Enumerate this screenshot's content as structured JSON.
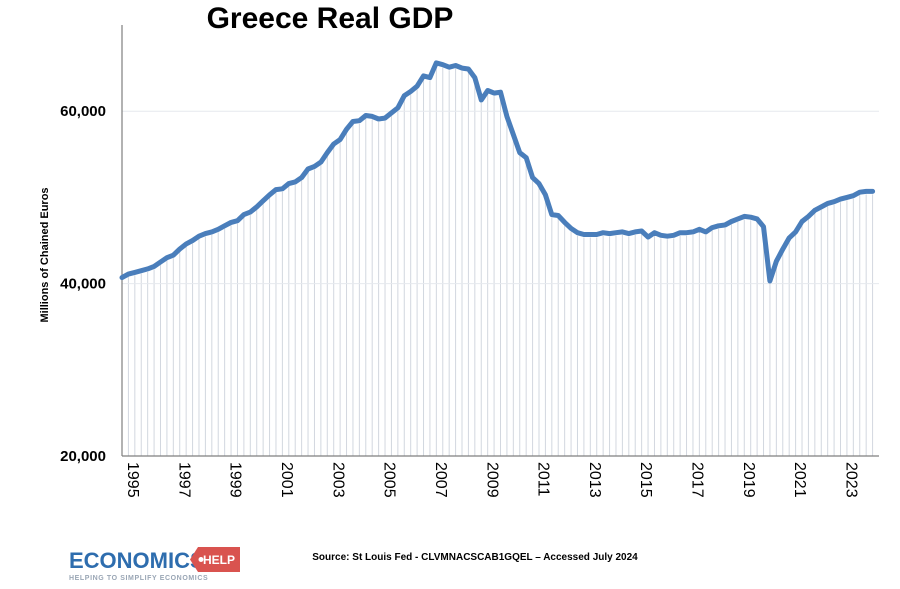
{
  "colors": {
    "line": "#4a7ebb",
    "axis": "#7f7f7f",
    "vgrid": "#d2d7df",
    "logo_blue": "#2e6dae",
    "logo_red": "#d9534f"
  },
  "chart_data": {
    "type": "line",
    "title": "Greece Real GDP",
    "ylabel": "Millions of Chained Euros",
    "xlabel": "",
    "ylim": [
      20000,
      70000
    ],
    "xlim": [
      1995.0,
      2024.5
    ],
    "y_ticks": [
      "20,000",
      "40,000",
      "60,000"
    ],
    "y_tick_values": [
      20000,
      40000,
      60000
    ],
    "x_ticks": [
      "1995",
      "1997",
      "1999",
      "2001",
      "2003",
      "2005",
      "2007",
      "2009",
      "2011",
      "2013",
      "2015",
      "2017",
      "2019",
      "2021",
      "2023"
    ],
    "x_tick_values": [
      1995,
      1997,
      1999,
      2001,
      2003,
      2005,
      2007,
      2009,
      2011,
      2013,
      2015,
      2017,
      2019,
      2021,
      2023
    ],
    "grid": "vertical lines at each quarter",
    "series": [
      {
        "frequency": "quarterly",
        "x": [
          1995.0,
          1995.25,
          1995.5,
          1995.75,
          1996.0,
          1996.25,
          1996.5,
          1996.75,
          1997.0,
          1997.25,
          1997.5,
          1997.75,
          1998.0,
          1998.25,
          1998.5,
          1998.75,
          1999.0,
          1999.25,
          1999.5,
          1999.75,
          2000.0,
          2000.25,
          2000.5,
          2000.75,
          2001.0,
          2001.25,
          2001.5,
          2001.75,
          2002.0,
          2002.25,
          2002.5,
          2002.75,
          2003.0,
          2003.25,
          2003.5,
          2003.75,
          2004.0,
          2004.25,
          2004.5,
          2004.75,
          2005.0,
          2005.25,
          2005.5,
          2005.75,
          2006.0,
          2006.25,
          2006.5,
          2006.75,
          2007.0,
          2007.25,
          2007.5,
          2007.75,
          2008.0,
          2008.25,
          2008.5,
          2008.75,
          2009.0,
          2009.25,
          2009.5,
          2009.75,
          2010.0,
          2010.25,
          2010.5,
          2010.75,
          2011.0,
          2011.25,
          2011.5,
          2011.75,
          2012.0,
          2012.25,
          2012.5,
          2012.75,
          2013.0,
          2013.25,
          2013.5,
          2013.75,
          2014.0,
          2014.25,
          2014.5,
          2014.75,
          2015.0,
          2015.25,
          2015.5,
          2015.75,
          2016.0,
          2016.25,
          2016.5,
          2016.75,
          2017.0,
          2017.25,
          2017.5,
          2017.75,
          2018.0,
          2018.25,
          2018.5,
          2018.75,
          2019.0,
          2019.25,
          2019.5,
          2019.75,
          2020.0,
          2020.25,
          2020.5,
          2020.75,
          2021.0,
          2021.25,
          2021.5,
          2021.75,
          2022.0,
          2022.25,
          2022.5,
          2022.75,
          2023.0,
          2023.25,
          2023.5,
          2023.75,
          2024.0,
          2024.25
        ],
        "values": [
          40700,
          41100,
          41300,
          41500,
          41700,
          42000,
          42500,
          43000,
          43300,
          44000,
          44600,
          45000,
          45500,
          45800,
          46000,
          46300,
          46700,
          47100,
          47300,
          48000,
          48300,
          48900,
          49600,
          50300,
          50900,
          51000,
          51600,
          51800,
          52300,
          53300,
          53600,
          54100,
          55200,
          56200,
          56700,
          57900,
          58800,
          58900,
          59500,
          59400,
          59100,
          59200,
          59800,
          60400,
          61800,
          62300,
          62900,
          64100,
          63900,
          65600,
          65400,
          65100,
          65300,
          65000,
          64900,
          63900,
          61300,
          62400,
          62100,
          62200,
          59400,
          57300,
          55200,
          54600,
          52300,
          51600,
          50300,
          48000,
          47900,
          47100,
          46400,
          45900,
          45700,
          45700,
          45700,
          45900,
          45800,
          45900,
          46000,
          45800,
          46000,
          46100,
          45400,
          45900,
          45600,
          45500,
          45600,
          45900,
          45900,
          46000,
          46300,
          46000,
          46500,
          46700,
          46800,
          47200,
          47500,
          47800,
          47700,
          47500,
          46600,
          40300,
          42600,
          44000,
          45300,
          46000,
          47200,
          47800,
          48500,
          48900,
          49300,
          49500,
          49800,
          50000,
          50200,
          50600,
          50700,
          50700
        ]
      }
    ]
  },
  "source": "Source: St Louis Fed - CLVMNACSCAB1GQEL – Accessed July 2024",
  "logo": {
    "word": "ECONOMICS",
    "badge": "HELP",
    "tagline": "HELPING TO SIMPLIFY ECONOMICS"
  }
}
